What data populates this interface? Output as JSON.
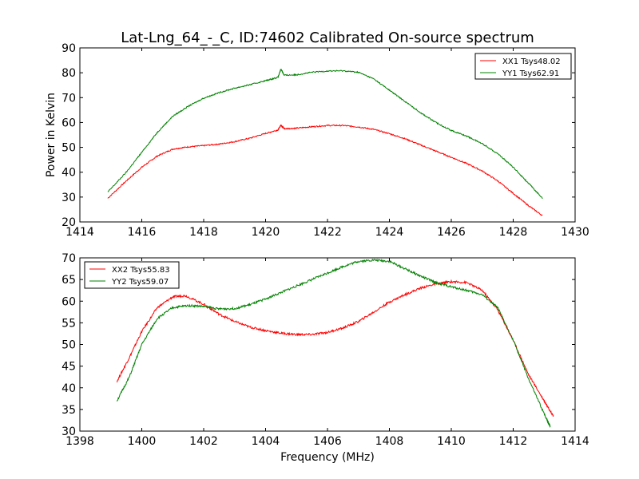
{
  "chart_data": [
    {
      "type": "line",
      "title": "Lat-Lng_64_-_C, ID:74602 Calibrated On-source spectrum",
      "xlabel": "",
      "ylabel": "Power in Kelvin",
      "xlim": [
        1414,
        1430
      ],
      "ylim": [
        20,
        90
      ],
      "xticks": [
        "1414",
        "1416",
        "1418",
        "1420",
        "1422",
        "1424",
        "1426",
        "1428",
        "1430"
      ],
      "yticks": [
        "20",
        "30",
        "40",
        "50",
        "60",
        "70",
        "80",
        "90"
      ],
      "grid": false,
      "legend_position": "top-right",
      "series": [
        {
          "name": "XX1 Tsys48.02",
          "color": "#ff0000",
          "x": [
            1414.9,
            1415.5,
            1416.0,
            1416.5,
            1417.0,
            1417.5,
            1418.0,
            1418.5,
            1419.0,
            1419.5,
            1420.0,
            1420.4,
            1420.5,
            1420.6,
            1421.0,
            1421.5,
            1422.0,
            1422.5,
            1423.0,
            1423.5,
            1424.0,
            1424.5,
            1425.0,
            1425.5,
            1426.0,
            1426.5,
            1427.0,
            1427.5,
            1428.0,
            1428.5,
            1428.95
          ],
          "y": [
            29.5,
            36.5,
            42,
            46.5,
            49.3,
            50.2,
            50.7,
            51.3,
            52.3,
            53.7,
            55.6,
            57,
            59,
            57.5,
            57.7,
            58.3,
            58.8,
            58.8,
            58.2,
            57.2,
            55.5,
            53.5,
            51,
            48.5,
            46,
            43.5,
            40.5,
            36.5,
            31.5,
            26.5,
            22.5
          ]
        },
        {
          "name": "YY1 Tsys62.91",
          "color": "#008000",
          "x": [
            1414.9,
            1415.5,
            1416.0,
            1416.5,
            1417.0,
            1417.5,
            1418.0,
            1418.5,
            1419.0,
            1419.5,
            1420.0,
            1420.4,
            1420.5,
            1420.6,
            1421.0,
            1421.5,
            1422.0,
            1422.5,
            1423.0,
            1423.5,
            1424.0,
            1424.5,
            1425.0,
            1425.5,
            1426.0,
            1426.5,
            1427.0,
            1427.5,
            1428.0,
            1428.5,
            1428.95
          ],
          "y": [
            32,
            40,
            48,
            56,
            62.5,
            66.5,
            69.8,
            72,
            73.8,
            75.2,
            76.8,
            78.2,
            81.5,
            79,
            79.2,
            80.2,
            80.7,
            80.8,
            80.2,
            77.5,
            73,
            68.5,
            64,
            60,
            56.8,
            54.5,
            51.5,
            47.5,
            42,
            35.5,
            29.5
          ]
        }
      ]
    },
    {
      "type": "line",
      "title": "",
      "xlabel": "Frequency (MHz)",
      "ylabel": "",
      "xlim": [
        1398,
        1414
      ],
      "ylim": [
        30,
        70
      ],
      "xticks": [
        "1398",
        "1400",
        "1402",
        "1404",
        "1406",
        "1408",
        "1410",
        "1412",
        "1414"
      ],
      "yticks": [
        "30",
        "35",
        "40",
        "45",
        "50",
        "55",
        "60",
        "65",
        "70"
      ],
      "grid": false,
      "legend_position": "top-left",
      "series": [
        {
          "name": "XX2 Tsys55.83",
          "color": "#ff0000",
          "x": [
            1399.2,
            1399.6,
            1400.0,
            1400.5,
            1401.0,
            1401.4,
            1402.0,
            1402.5,
            1403.0,
            1403.5,
            1404.0,
            1404.5,
            1405.0,
            1405.5,
            1406.0,
            1406.5,
            1407.0,
            1407.5,
            1408.0,
            1408.5,
            1409.0,
            1409.5,
            1410.0,
            1410.5,
            1411.0,
            1411.5,
            1412.0,
            1412.5,
            1413.0,
            1413.3
          ],
          "y": [
            41.5,
            47,
            53,
            58.5,
            61,
            61.3,
            59.3,
            57,
            55.3,
            54,
            53.2,
            52.6,
            52.3,
            52.3,
            52.8,
            53.8,
            55.3,
            57.5,
            59.8,
            61.5,
            63,
            64,
            64.5,
            64.3,
            62.5,
            58,
            51,
            43,
            37,
            33.5
          ]
        },
        {
          "name": "YY2 Tsys59.07",
          "color": "#008000",
          "x": [
            1399.2,
            1399.6,
            1400.0,
            1400.5,
            1401.0,
            1401.5,
            1402.0,
            1402.5,
            1403.0,
            1403.5,
            1404.0,
            1404.5,
            1405.0,
            1405.5,
            1406.0,
            1406.5,
            1407.0,
            1407.5,
            1408.0,
            1408.5,
            1409.0,
            1409.5,
            1410.0,
            1410.5,
            1411.0,
            1411.5,
            1412.0,
            1412.5,
            1413.0,
            1413.2
          ],
          "y": [
            37,
            42.5,
            50,
            56,
            58.5,
            59,
            58.8,
            58.2,
            58.3,
            59.2,
            60.5,
            62,
            63.5,
            65,
            66.5,
            68,
            69.2,
            69.5,
            69.2,
            67.5,
            65.8,
            64.3,
            63.3,
            62.5,
            61.5,
            58.5,
            51,
            42,
            34,
            31
          ]
        }
      ]
    }
  ]
}
